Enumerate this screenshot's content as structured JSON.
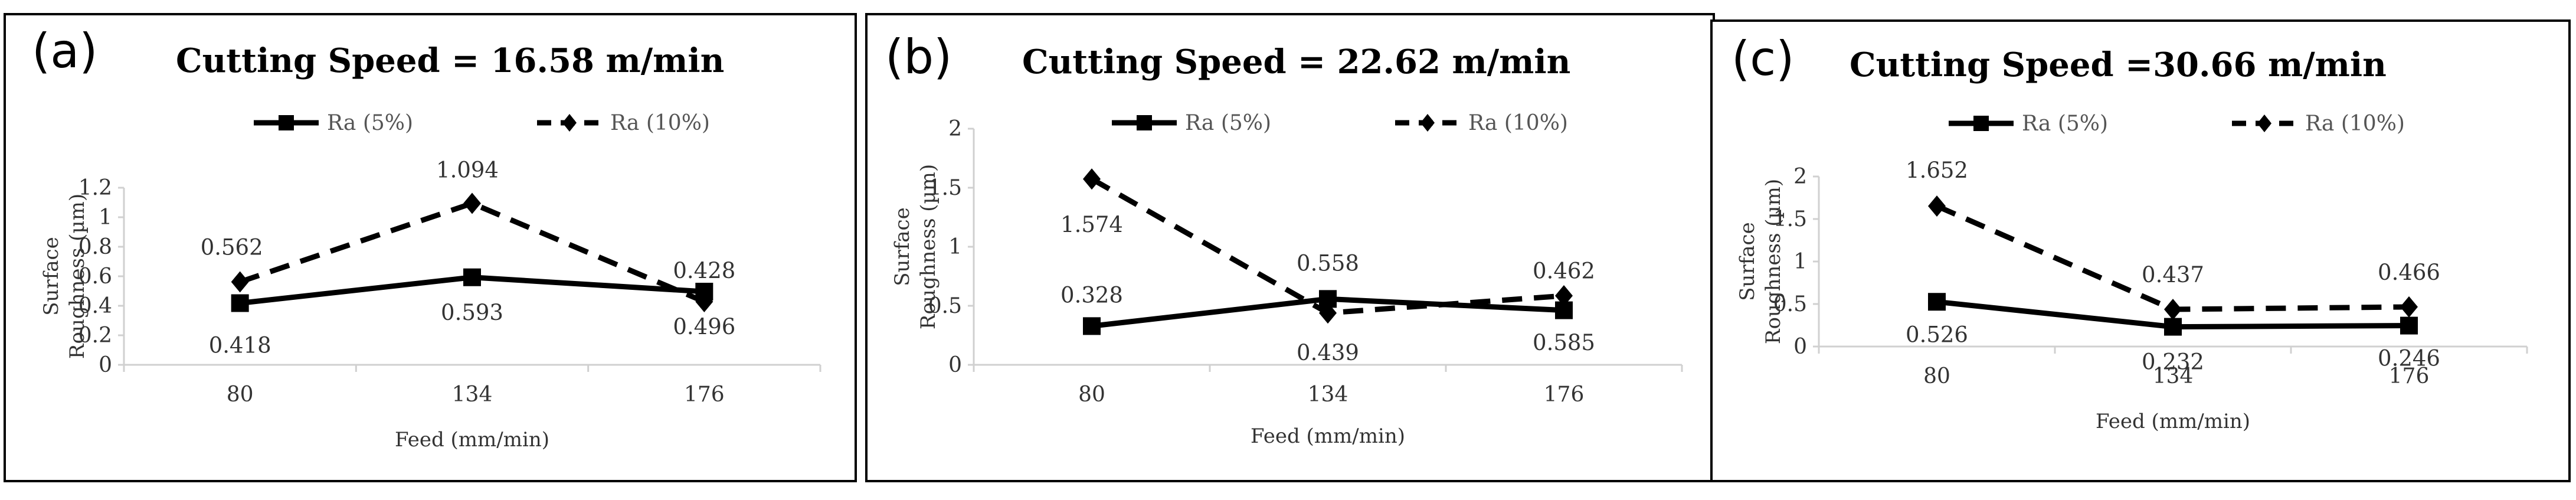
{
  "chart_data": [
    {
      "type": "line",
      "panel_label": "(a)",
      "title": "Cutting Speed = 16.58 m/min",
      "categories": [
        "80",
        "134",
        "176"
      ],
      "xlabel": "Feed (mm/min)",
      "ylabel": [
        "Surface",
        "Roughness (µm)"
      ],
      "ylim": [
        0,
        1.2
      ],
      "yticks": [
        "0",
        "0.2",
        "0.4",
        "0.6",
        "0.8",
        "1",
        "1.2"
      ],
      "ytick_values": [
        0,
        0.2,
        0.4,
        0.6,
        0.8,
        1,
        1.2
      ],
      "series": [
        {
          "name": "Ra (5%)",
          "style": "solid-square",
          "values": [
            0.418,
            0.593,
            0.496
          ],
          "labels": [
            "0.418",
            "0.593",
            "0.496"
          ]
        },
        {
          "name": "Ra (10%)",
          "style": "dashed-diamond",
          "values": [
            0.562,
            1.094,
            0.428
          ],
          "labels": [
            "0.562",
            "1.094",
            "0.428"
          ]
        }
      ]
    },
    {
      "type": "line",
      "panel_label": "(b)",
      "title": "Cutting Speed = 22.62 m/min",
      "categories": [
        "80",
        "134",
        "176"
      ],
      "xlabel": "Feed (mm/min)",
      "ylabel": [
        "Surface",
        "Roughness (µm)"
      ],
      "ylim": [
        0,
        2
      ],
      "yticks": [
        "0",
        "0.5",
        "1",
        "1.5",
        "2"
      ],
      "ytick_values": [
        0,
        0.5,
        1,
        1.5,
        2
      ],
      "series": [
        {
          "name": "Ra (5%)",
          "style": "solid-square",
          "values": [
            0.328,
            0.558,
            0.462
          ],
          "labels": [
            "0.328",
            "0.558",
            "0.462"
          ]
        },
        {
          "name": "Ra (10%)",
          "style": "dashed-diamond",
          "values": [
            1.574,
            0.439,
            0.585
          ],
          "labels": [
            "1.574",
            "0.439",
            "0.585"
          ]
        }
      ]
    },
    {
      "type": "line",
      "panel_label": "(c)",
      "title": "Cutting Speed =30.66 m/min",
      "categories": [
        "80",
        "134",
        "176"
      ],
      "xlabel": "Feed (mm/min)",
      "ylabel": [
        "Surface",
        "Roughness (µm)"
      ],
      "ylim": [
        0,
        2
      ],
      "yticks": [
        "0",
        "0.5",
        "1",
        "1.5",
        "2"
      ],
      "ytick_values": [
        0,
        0.5,
        1,
        1.5,
        2
      ],
      "series": [
        {
          "name": "Ra (5%)",
          "style": "solid-square",
          "values": [
            0.526,
            0.232,
            0.246
          ],
          "labels": [
            "0.526",
            "0.232",
            "0.246"
          ]
        },
        {
          "name": "Ra (10%)",
          "style": "dashed-diamond",
          "values": [
            1.652,
            0.437,
            0.466
          ],
          "labels": [
            "1.652",
            "0.437",
            "0.466"
          ]
        }
      ]
    }
  ]
}
